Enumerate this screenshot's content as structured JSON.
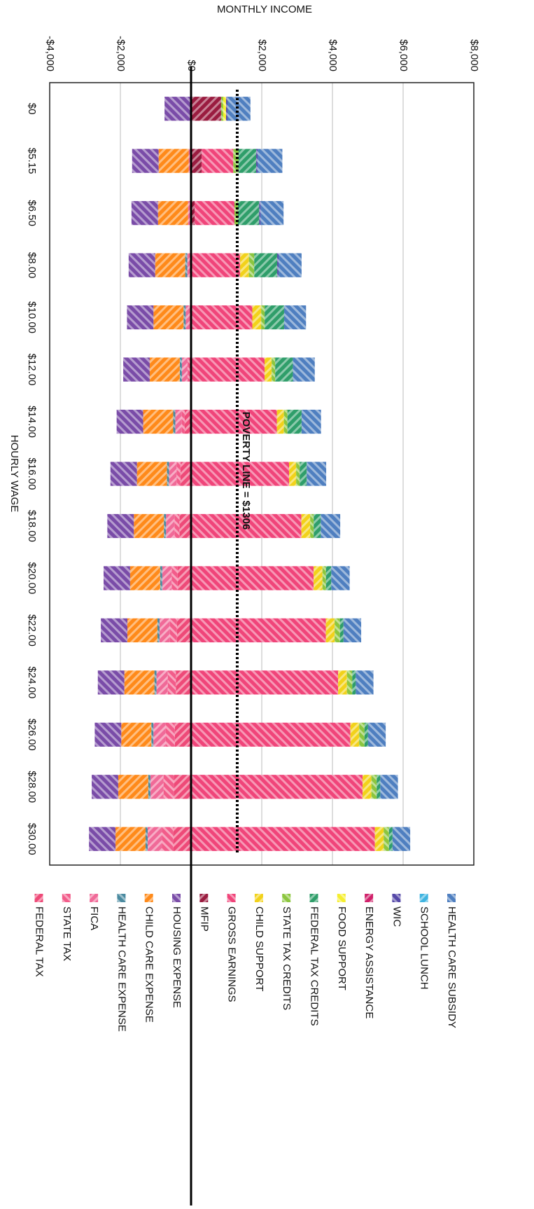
{
  "chart_data": {
    "type": "stacked_bar",
    "x_label": "HOURLY WAGE",
    "y_label": "MONTHLY INCOME",
    "categories": [
      "$0",
      "$5.15",
      "$6.50",
      "$8.00",
      "$10.00",
      "$12.00",
      "$14.00",
      "$16.00",
      "$18.00",
      "$20.00",
      "$22.00",
      "$24.00",
      "$26.00",
      "$28.00",
      "$30.00"
    ],
    "ylim": [
      -4000,
      8000
    ],
    "yticks": [
      {
        "value": -4000,
        "label": "-$4,000"
      },
      {
        "value": -2000,
        "label": "-$2,000"
      },
      {
        "value": 0,
        "label": "$0"
      },
      {
        "value": 2000,
        "label": "$2,000"
      },
      {
        "value": 4000,
        "label": "$4,000"
      },
      {
        "value": 6000,
        "label": "$6,000"
      },
      {
        "value": 8000,
        "label": "$8,000"
      }
    ],
    "grid": true,
    "legend": "right",
    "poverty_line": {
      "value": 1306,
      "label": "POVERTY LINE = $1306"
    },
    "series": [
      {
        "name": "HEALTH CARE SUBSIDY",
        "color": "#4f7fc0",
        "values": [
          650,
          700,
          650,
          650,
          620,
          620,
          550,
          550,
          550,
          520,
          500,
          500,
          500,
          500,
          500
        ]
      },
      {
        "name": "SCHOOL LUNCH",
        "color": "#3fb4e0",
        "values": [
          0,
          0,
          0,
          0,
          0,
          0,
          0,
          0,
          0,
          0,
          0,
          0,
          0,
          0,
          0
        ]
      },
      {
        "name": "WIC",
        "color": "#5548a8",
        "values": [
          40,
          40,
          40,
          40,
          0,
          0,
          0,
          0,
          0,
          0,
          0,
          0,
          0,
          0,
          0
        ]
      },
      {
        "name": "ENERGY ASSISTANCE",
        "color": "#d0206a",
        "values": [
          0,
          0,
          0,
          0,
          0,
          0,
          0,
          0,
          0,
          0,
          0,
          0,
          0,
          0,
          0
        ]
      },
      {
        "name": "FOOD SUPPORT",
        "color": "#f5ee30",
        "values": [
          80,
          0,
          0,
          0,
          0,
          0,
          0,
          0,
          0,
          0,
          0,
          0,
          0,
          0,
          0
        ]
      },
      {
        "name": "FEDERAL TAX CREDITS",
        "color": "#2f9e6a",
        "values": [
          0,
          500,
          600,
          650,
          550,
          500,
          400,
          200,
          200,
          150,
          100,
          100,
          100,
          100,
          100
        ]
      },
      {
        "name": "STATE TAX CREDITS",
        "color": "#8cc63f",
        "values": [
          60,
          150,
          100,
          150,
          100,
          100,
          100,
          100,
          100,
          100,
          150,
          150,
          150,
          150,
          150
        ]
      },
      {
        "name": "CHILD SUPPORT",
        "color": "#f2d21a",
        "values": [
          0,
          0,
          0,
          250,
          250,
          200,
          200,
          200,
          250,
          250,
          250,
          250,
          250,
          250,
          250
        ]
      },
      {
        "name": "GROSS EARNINGS",
        "color": "#f0457a",
        "values": [
          0,
          893,
          1127,
          1387,
          1733,
          2080,
          2427,
          2773,
          3120,
          3467,
          3813,
          4160,
          4507,
          4853,
          5200
        ]
      },
      {
        "name": "MFIP",
        "color": "#9a1c40",
        "values": [
          850,
          300,
          100,
          0,
          0,
          0,
          0,
          0,
          0,
          0,
          0,
          0,
          0,
          0,
          0
        ]
      },
      {
        "name": "HOUSING EXPENSE",
        "color": "#7a4ca8",
        "values": [
          -750,
          -750,
          -750,
          -750,
          -750,
          -750,
          -750,
          -750,
          -750,
          -750,
          -750,
          -750,
          -750,
          -750,
          -750
        ]
      },
      {
        "name": "CHILD CARE EXPENSE",
        "color": "#ff8a1a",
        "values": [
          0,
          -850,
          -850,
          -850,
          -850,
          -850,
          -850,
          -850,
          -850,
          -850,
          -850,
          -850,
          -850,
          -850,
          -850
        ]
      },
      {
        "name": "HEALTH CARE EXPENSE",
        "color": "#4a8aa0",
        "values": [
          0,
          0,
          0,
          -60,
          -60,
          -60,
          -60,
          -60,
          -60,
          -60,
          -60,
          -60,
          -60,
          -60,
          -60
        ]
      },
      {
        "name": "FICA",
        "color": "#f06a98",
        "values": [
          0,
          -68,
          -86,
          -106,
          -133,
          -159,
          -186,
          -212,
          -239,
          -265,
          -292,
          -318,
          -345,
          -371,
          -398
        ]
      },
      {
        "name": "STATE TAX",
        "color": "#f25c8a",
        "values": [
          0,
          0,
          0,
          0,
          -20,
          -50,
          -80,
          -110,
          -140,
          -170,
          -200,
          -230,
          -260,
          -290,
          -320
        ]
      },
      {
        "name": "FEDERAL TAX",
        "color": "#ee4a78",
        "values": [
          0,
          0,
          0,
          0,
          0,
          -50,
          -180,
          -300,
          -330,
          -380,
          -400,
          -430,
          -460,
          -490,
          -510
        ]
      }
    ]
  }
}
